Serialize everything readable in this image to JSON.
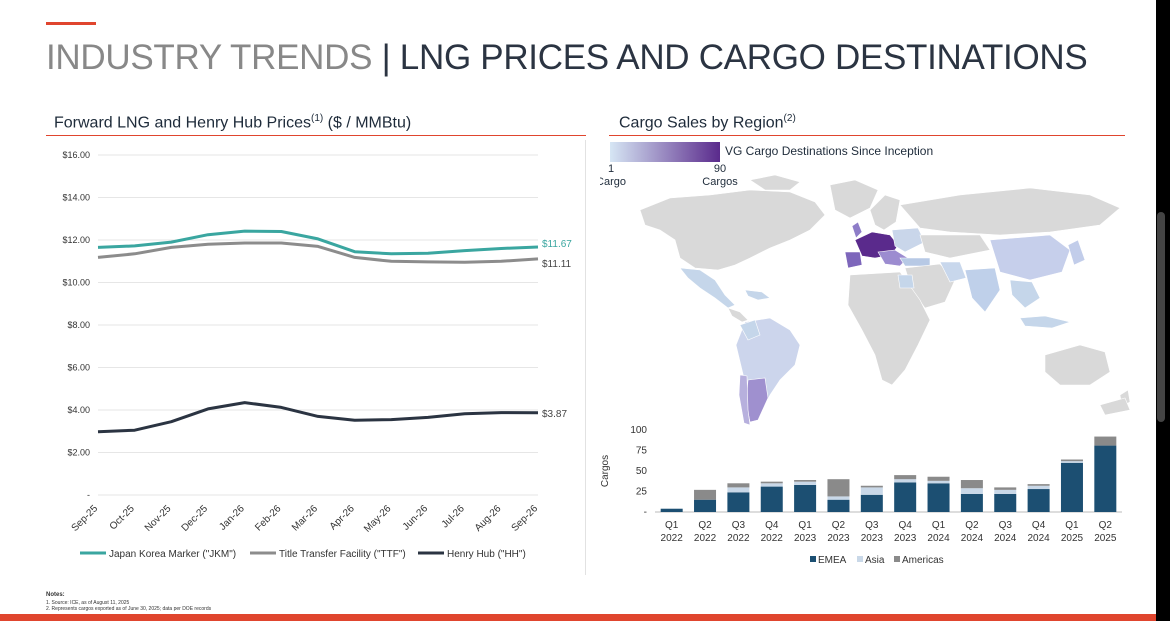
{
  "title": {
    "prefix": "INDUSTRY TRENDS",
    "separator": "|",
    "main": "LNG PRICES AND CARGO DESTINATIONS"
  },
  "colors": {
    "accent": "#e0452e",
    "jkm": "#3aa6a0",
    "ttf": "#8c8c8c",
    "hh": "#2b3442",
    "emea": "#1c4f72",
    "asia": "#c9d8e8",
    "americas": "#8a8a8a"
  },
  "left_panel": {
    "title": "Forward LNG and Henry Hub Prices",
    "title_sup": "(1)",
    "title_unit": " ($ / MMBtu)"
  },
  "right_panel": {
    "title": "Cargo Sales by Region",
    "title_sup": "(2)",
    "map_legend": {
      "label": "VG Cargo Destinations Since Inception",
      "min_value": "1",
      "min_label": "Cargo",
      "max_value": "90",
      "max_label": "Cargos"
    }
  },
  "chart_data": [
    {
      "type": "line",
      "x": [
        "Sep-25",
        "Oct-25",
        "Nov-25",
        "Dec-25",
        "Jan-26",
        "Feb-26",
        "Mar-26",
        "Apr-26",
        "May-26",
        "Jun-26",
        "Jul-26",
        "Aug-26",
        "Sep-26"
      ],
      "yticks": [
        "$16.00",
        "$14.00",
        "$12.00",
        "$10.00",
        "$8.00",
        "$6.00",
        "$4.00",
        "$2.00",
        "-"
      ],
      "ylim": [
        0,
        16
      ],
      "series": [
        {
          "name": "Japan Korea Marker (\"JKM\")",
          "color": "#3aa6a0",
          "end_label": "$11.67",
          "values": [
            11.65,
            11.72,
            11.9,
            12.25,
            12.42,
            12.4,
            12.05,
            11.45,
            11.35,
            11.38,
            11.5,
            11.6,
            11.67
          ]
        },
        {
          "name": "Title Transfer Facility (\"TTF\")",
          "color": "#8c8c8c",
          "end_label": "$11.11",
          "values": [
            11.18,
            11.35,
            11.65,
            11.8,
            11.86,
            11.86,
            11.7,
            11.18,
            11.0,
            10.97,
            10.95,
            11.0,
            11.11
          ]
        },
        {
          "name": "Henry Hub (\"HH\")",
          "color": "#2b3442",
          "end_label": "$3.87",
          "values": [
            2.98,
            3.05,
            3.45,
            4.05,
            4.35,
            4.12,
            3.7,
            3.52,
            3.55,
            3.65,
            3.82,
            3.88,
            3.87
          ]
        }
      ]
    },
    {
      "type": "bar",
      "stacked": true,
      "categories": [
        [
          "Q1",
          "2022"
        ],
        [
          "Q2",
          "2022"
        ],
        [
          "Q3",
          "2022"
        ],
        [
          "Q4",
          "2022"
        ],
        [
          "Q1",
          "2023"
        ],
        [
          "Q2",
          "2023"
        ],
        [
          "Q3",
          "2023"
        ],
        [
          "Q4",
          "2023"
        ],
        [
          "Q1",
          "2024"
        ],
        [
          "Q2",
          "2024"
        ],
        [
          "Q3",
          "2024"
        ],
        [
          "Q4",
          "2024"
        ],
        [
          "Q1",
          "2025"
        ],
        [
          "Q2",
          "2025"
        ]
      ],
      "ylabel": "Cargos",
      "yticks": [
        "100",
        "75",
        "50",
        "25",
        "-"
      ],
      "ylim": [
        0,
        100
      ],
      "series": [
        {
          "name": "EMEA",
          "color": "#1c4f72",
          "values": [
            4,
            15,
            24,
            31,
            33,
            15,
            21,
            36,
            35,
            22,
            22,
            28,
            60,
            81
          ]
        },
        {
          "name": "Asia",
          "color": "#c9d8e8",
          "values": [
            0,
            0,
            6,
            4,
            4,
            4,
            9,
            4,
            3,
            7,
            5,
            4,
            2,
            0
          ]
        },
        {
          "name": "Americas",
          "color": "#8a8a8a",
          "values": [
            0,
            12,
            5,
            2,
            2,
            21,
            2,
            5,
            5,
            10,
            3,
            2,
            2,
            11
          ]
        }
      ]
    }
  ],
  "notes": {
    "header": "Notes:",
    "items": [
      "1.       Source: ICE, as of August 11, 2025",
      "2.       Represents cargos exported as of June 30, 2025; data per DOE records"
    ]
  }
}
